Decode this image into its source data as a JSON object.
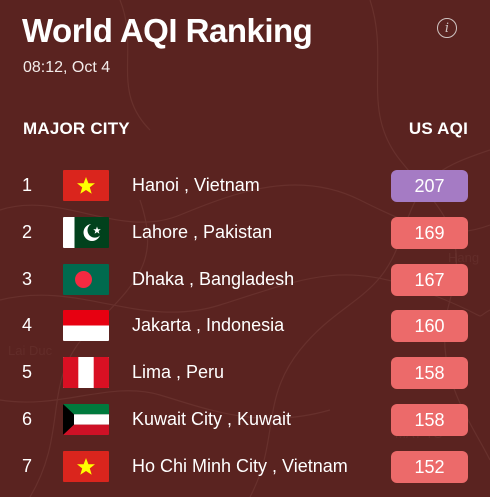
{
  "header": {
    "title": "World AQI Ranking",
    "timestamp": "08:12, Oct 4",
    "info_icon": "info-icon",
    "col_city": "MAJOR CITY",
    "col_aqi": "US AQI"
  },
  "colors": {
    "background": "#5a2320",
    "very_unhealthy": "#a57bc4",
    "unhealthy": "#ec6a6a"
  },
  "rankings": [
    {
      "rank": "1",
      "city": "Hanoi , Vietnam",
      "aqi": "207",
      "flag": "vietnam-flag",
      "color": "#a57bc4"
    },
    {
      "rank": "2",
      "city": "Lahore , Pakistan",
      "aqi": "169",
      "flag": "pakistan-flag",
      "color": "#ec6a6a"
    },
    {
      "rank": "3",
      "city": "Dhaka , Bangladesh",
      "aqi": "167",
      "flag": "bangladesh-flag",
      "color": "#ec6a6a"
    },
    {
      "rank": "4",
      "city": "Jakarta , Indonesia",
      "aqi": "160",
      "flag": "indonesia-flag",
      "color": "#ec6a6a"
    },
    {
      "rank": "5",
      "city": "Lima , Peru",
      "aqi": "158",
      "flag": "peru-flag",
      "color": "#ec6a6a"
    },
    {
      "rank": "6",
      "city": "Kuwait City , Kuwait",
      "aqi": "158",
      "flag": "kuwait-flag",
      "color": "#ec6a6a"
    },
    {
      "rank": "7",
      "city": "Ho Chi Minh City , Vietnam",
      "aqi": "152",
      "flag": "vietnam-flag",
      "color": "#ec6a6a"
    }
  ]
}
